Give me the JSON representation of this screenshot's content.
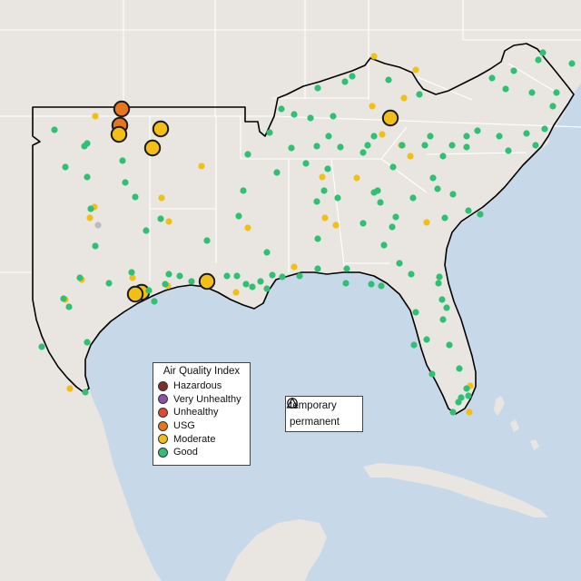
{
  "legend": {
    "title": "Air Quality Index",
    "categories": [
      {
        "label": "Hazardous",
        "color": "#7e2f2a"
      },
      {
        "label": "Very Unhealthy",
        "color": "#8e4fa8"
      },
      {
        "label": "Unhealthy",
        "color": "#e04a2f"
      },
      {
        "label": "USG",
        "color": "#e5761d"
      },
      {
        "label": "Moderate",
        "color": "#f2bf17"
      },
      {
        "label": "Good",
        "color": "#2fc073"
      }
    ]
  },
  "shape_legend": {
    "temporary": "temporary",
    "permanent": "permanent"
  },
  "colors": {
    "water": "#c7d9e8",
    "land": "#e9e6e1",
    "state_line": "#ffffff",
    "region_outline": "#000000",
    "nodata_site": "#bcbcbc"
  }
}
